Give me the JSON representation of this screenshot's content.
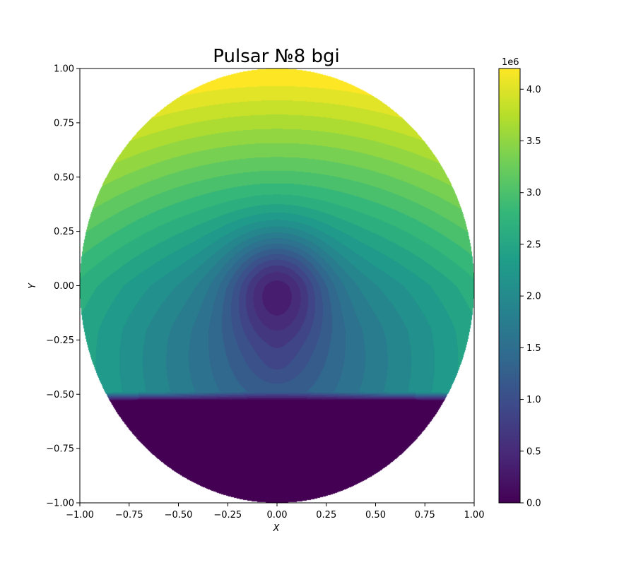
{
  "chart_data": {
    "type": "heatmap",
    "title": "Pulsar №8 bgi",
    "xlabel": "X",
    "ylabel": "Y",
    "xlim": [
      -1.0,
      1.0
    ],
    "ylim": [
      -1.0,
      1.0
    ],
    "x_ticks": [
      "−1.00",
      "−0.75",
      "−0.50",
      "−0.25",
      "0.00",
      "0.25",
      "0.50",
      "0.75",
      "1.00"
    ],
    "y_ticks": [
      "1.00",
      "0.75",
      "0.50",
      "0.25",
      "0.00",
      "−0.25",
      "−0.50",
      "−0.75",
      "−1.00"
    ],
    "x_tick_values": [
      -1.0,
      -0.75,
      -0.5,
      -0.25,
      0.0,
      0.25,
      0.5,
      0.75,
      1.0
    ],
    "y_tick_values": [
      1.0,
      0.75,
      0.5,
      0.25,
      0.0,
      -0.25,
      -0.5,
      -0.75,
      -1.0
    ],
    "domain": "unit disk (x² + y² ≤ 1)",
    "colormap": "viridis",
    "colormap_stops": [
      "#440154",
      "#482878",
      "#3e4989",
      "#31688e",
      "#26828e",
      "#1f9e89",
      "#35b779",
      "#6ece58",
      "#b5de2b",
      "#fde725"
    ],
    "value_range": [
      0,
      4200000
    ],
    "cutoff_y": -0.53,
    "center_minimum": {
      "x": 0.0,
      "y": 0.0
    },
    "colorbar": {
      "scale_label": "1e6",
      "ticks": [
        "4.0",
        "3.5",
        "3.0",
        "2.5",
        "2.0",
        "1.5",
        "1.0",
        "0.5",
        "0.0"
      ],
      "tick_values": [
        4.0,
        3.5,
        3.0,
        2.5,
        2.0,
        1.5,
        1.0,
        0.5,
        0.0
      ],
      "max": 4.2
    },
    "grid": false
  }
}
